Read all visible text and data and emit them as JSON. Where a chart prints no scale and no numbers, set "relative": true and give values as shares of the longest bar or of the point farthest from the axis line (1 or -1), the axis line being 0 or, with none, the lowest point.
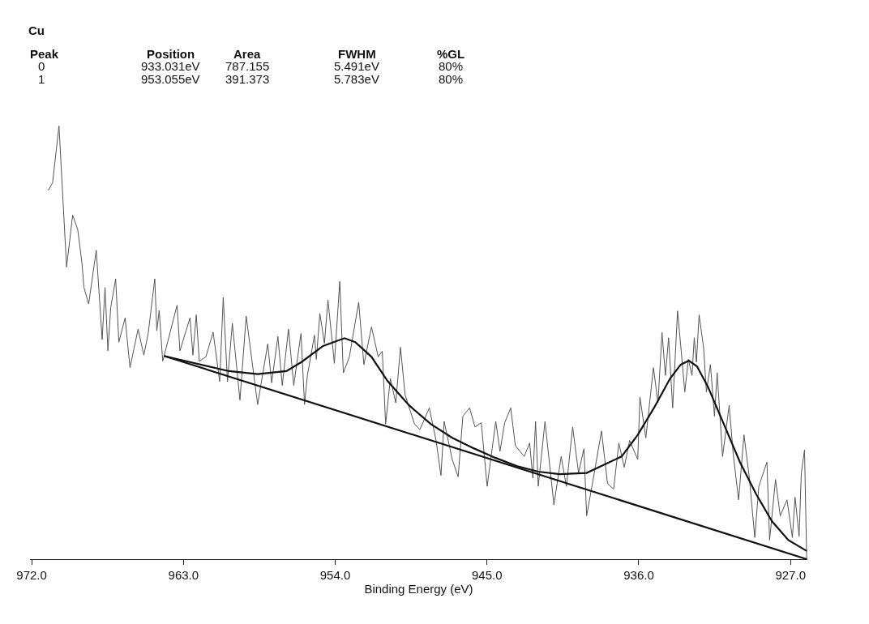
{
  "chart_data": {
    "type": "line",
    "title": "Cu",
    "xlabel": "Binding Energy (eV)",
    "relative": true,
    "tick_labels": "x",
    "marker": "none",
    "xlim": [
      972.1,
      926.0
    ],
    "xticks": [
      {
        "value": 972,
        "label": "972.0"
      },
      {
        "value": 963,
        "label": "963.0"
      },
      {
        "value": 954,
        "label": "954.0"
      },
      {
        "value": 945,
        "label": "945.0"
      },
      {
        "value": 936,
        "label": "936.0"
      },
      {
        "value": 927,
        "label": "927.0"
      }
    ],
    "annotations": [
      "Peak",
      "Position",
      "Area",
      "FWHM",
      "%GL",
      "0",
      "933.031eV",
      "787.155",
      "5.491eV",
      "80%",
      "1",
      "953.055eV",
      "391.373",
      "5.783eV",
      "80%"
    ],
    "series": [
      {
        "color": "#555555",
        "x": [
          971.02,
          970.76,
          970.38,
          969.93,
          969.57,
          969.27,
          969.02,
          968.9,
          968.62,
          968.17,
          967.82,
          967.65,
          967.48,
          967.31,
          967.02,
          966.83,
          966.46,
          966.17,
          965.69,
          965.35,
          965.09,
          964.7,
          964.58,
          964.44,
          964.23,
          963.38,
          963.21,
          962.61,
          962.44,
          962.24,
          962.06,
          961.67,
          961.24,
          960.85,
          960.64,
          960.39,
          960.1,
          959.65,
          959.28,
          958.6,
          958.0,
          957.77,
          957.4,
          957.14,
          956.77,
          956.46,
          956.03,
          955.82,
          955.65,
          955.23,
          955.12,
          954.91,
          954.64,
          954.43,
          954.05,
          953.73,
          953.52,
          953.16,
          952.61,
          952.3,
          951.85,
          951.45,
          951.21,
          951.01,
          950.73,
          950.41,
          950.13,
          949.86,
          949.3,
          948.98,
          948.42,
          948.02,
          947.73,
          947.54,
          947.06,
          946.71,
          946.43,
          946.03,
          945.71,
          945.34,
          944.99,
          944.48,
          944.23,
          943.95,
          943.59,
          943.32,
          942.79,
          942.47,
          942.28,
          942.12,
          941.96,
          941.56,
          941.03,
          940.6,
          940.29,
          939.92,
          939.57,
          939.25,
          939.09,
          938.69,
          938.21,
          937.85,
          937.49,
          937.18,
          936.86,
          936.54,
          936.06,
          935.93,
          935.58,
          935.13,
          934.86,
          934.62,
          934.42,
          934.23,
          933.99,
          933.7,
          933.51,
          933.27,
          933.06,
          932.84,
          932.71,
          932.58,
          932.42,
          932.15,
          931.99,
          931.75,
          931.51,
          931.35,
          931.03,
          930.64,
          930.4,
          930.08,
          929.76,
          929.44,
          929.12,
          928.88,
          928.4,
          928.24,
          927.89,
          927.61,
          927.21,
          926.89,
          926.73,
          926.49,
          926.36,
          926.17,
          926.04
        ],
        "values": [
          0.851,
          0.869,
          1.0,
          0.674,
          0.794,
          0.761,
          0.684,
          0.627,
          0.589,
          0.713,
          0.507,
          0.627,
          0.481,
          0.581,
          0.647,
          0.501,
          0.557,
          0.442,
          0.531,
          0.471,
          0.521,
          0.647,
          0.527,
          0.574,
          0.457,
          0.586,
          0.481,
          0.557,
          0.471,
          0.564,
          0.457,
          0.467,
          0.524,
          0.41,
          0.604,
          0.41,
          0.544,
          0.367,
          0.561,
          0.357,
          0.497,
          0.407,
          0.514,
          0.401,
          0.531,
          0.401,
          0.521,
          0.357,
          0.424,
          0.517,
          0.461,
          0.567,
          0.498,
          0.598,
          0.452,
          0.641,
          0.43,
          0.467,
          0.593,
          0.449,
          0.536,
          0.467,
          0.48,
          0.312,
          0.417,
          0.361,
          0.489,
          0.38,
          0.312,
          0.299,
          0.349,
          0.274,
          0.193,
          0.318,
          0.23,
          0.19,
          0.33,
          0.349,
          0.305,
          0.315,
          0.168,
          0.318,
          0.249,
          0.315,
          0.349,
          0.262,
          0.237,
          0.268,
          0.187,
          0.318,
          0.168,
          0.318,
          0.125,
          0.237,
          0.168,
          0.305,
          0.199,
          0.255,
          0.1,
          0.187,
          0.296,
          0.174,
          0.162,
          0.268,
          0.212,
          0.274,
          0.23,
          0.374,
          0.28,
          0.442,
          0.361,
          0.523,
          0.424,
          0.511,
          0.349,
          0.573,
          0.492,
          0.386,
          0.461,
          0.424,
          0.511,
          0.455,
          0.564,
          0.486,
          0.386,
          0.449,
          0.33,
          0.43,
          0.237,
          0.355,
          0.243,
          0.137,
          0.287,
          0.187,
          0.05,
          0.168,
          0.224,
          0.044,
          0.184,
          0.1,
          0.137,
          0.05,
          0.143,
          0.053,
          0.199,
          0.252,
          0
        ]
      },
      {
        "color": "#111111",
        "x": [
          964.15,
          960.3,
          958.6,
          956.89,
          956.0,
          954.72,
          953.45,
          952.81,
          951.85,
          950.89,
          949.62,
          948.34,
          947.06,
          945.79,
          944.51,
          943.24,
          941.96,
          940.69,
          939.09,
          937.02,
          936.06,
          935.1,
          934.14,
          933.51,
          933.03,
          932.55,
          931.91,
          930.96,
          930.0,
          929.04,
          928.09,
          927.13,
          926.04
        ],
        "values": [
          0.469,
          0.434,
          0.427,
          0.434,
          0.455,
          0.492,
          0.51,
          0.501,
          0.467,
          0.411,
          0.355,
          0.312,
          0.28,
          0.256,
          0.234,
          0.215,
          0.202,
          0.196,
          0.199,
          0.237,
          0.287,
          0.349,
          0.417,
          0.449,
          0.458,
          0.445,
          0.399,
          0.312,
          0.224,
          0.15,
          0.087,
          0.044,
          0.019
        ]
      },
      {
        "color": "#111111",
        "x": [
          964.15,
          926.04
        ],
        "values": [
          0.469,
          0
        ]
      }
    ]
  }
}
